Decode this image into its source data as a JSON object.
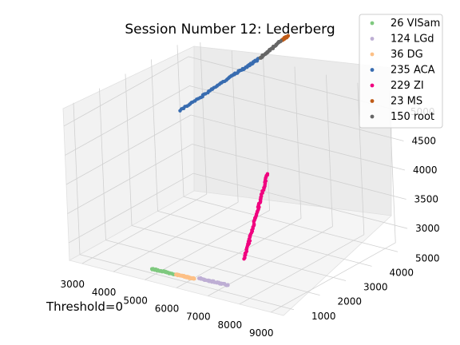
{
  "chart_data": {
    "type": "scatter",
    "title": "Session Number 12: Lederberg",
    "annotation": "Threshold=0",
    "xlabel": "",
    "ylabel": "",
    "zlabel": "",
    "xlim": [
      2600,
      9400
    ],
    "ylim": [
      600,
      5400
    ],
    "zlim": [
      2700,
      5300
    ],
    "x_ticks": [
      "3000",
      "4000",
      "5000",
      "6000",
      "7000",
      "8000",
      "9000"
    ],
    "y_ticks": [
      "1000",
      "2000",
      "3000",
      "4000",
      "5000"
    ],
    "z_ticks": [
      "3000",
      "3500",
      "4000",
      "4500",
      "5000"
    ],
    "legend_position": "top-right",
    "series": [
      {
        "name": "26 VISam",
        "color": "#7fc97f",
        "points": [
          [
            4900,
            980,
            2780
          ],
          [
            5080,
            985,
            2780
          ],
          [
            5260,
            990,
            2780
          ],
          [
            5440,
            995,
            2780
          ],
          [
            5620,
            1000,
            2780
          ]
        ]
      },
      {
        "name": "124 LGd",
        "color": "#beaed4",
        "points": [
          [
            6300,
            1110,
            2780
          ],
          [
            6480,
            1115,
            2780
          ],
          [
            6660,
            1120,
            2780
          ],
          [
            6840,
            1125,
            2780
          ],
          [
            7020,
            1130,
            2780
          ],
          [
            7200,
            1135,
            2780
          ]
        ]
      },
      {
        "name": "36 DG",
        "color": "#fdc086",
        "points": [
          [
            5650,
            1010,
            2780
          ],
          [
            5800,
            1015,
            2780
          ],
          [
            5950,
            1020,
            2780
          ],
          [
            6100,
            1025,
            2780
          ],
          [
            6220,
            1030,
            2780
          ]
        ]
      },
      {
        "name": "235 ACA",
        "color": "#386cb0",
        "points": [
          [
            2420,
            5220,
            4100
          ],
          [
            2800,
            5260,
            4280
          ],
          [
            3200,
            5300,
            4480
          ],
          [
            3600,
            5340,
            4680
          ],
          [
            4000,
            5380,
            4870
          ],
          [
            4400,
            5420,
            5060
          ],
          [
            4800,
            5460,
            5250
          ],
          [
            4480,
            5430,
            5100
          ],
          [
            3920,
            5370,
            4840
          ]
        ]
      },
      {
        "name": "229 ZI",
        "color": "#f0027f",
        "points": [
          [
            7350,
            1620,
            3140
          ],
          [
            7370,
            1740,
            3320
          ],
          [
            7390,
            1860,
            3500
          ],
          [
            7410,
            1980,
            3680
          ],
          [
            7430,
            2100,
            3860
          ],
          [
            7450,
            2220,
            4040
          ],
          [
            7470,
            2340,
            4220
          ],
          [
            7490,
            2460,
            4400
          ]
        ]
      },
      {
        "name": "23 MS",
        "color": "#bf5b17",
        "points": [
          [
            5500,
            5560,
            5650
          ],
          [
            5560,
            5565,
            5680
          ],
          [
            5620,
            5570,
            5710
          ],
          [
            5680,
            5575,
            5740
          ]
        ]
      },
      {
        "name": "150 root",
        "color": "#666666",
        "points": [
          [
            4820,
            5480,
            5260
          ],
          [
            4980,
            5500,
            5350
          ],
          [
            5140,
            5520,
            5440
          ],
          [
            5300,
            5540,
            5540
          ],
          [
            5460,
            5555,
            5630
          ]
        ]
      }
    ]
  }
}
